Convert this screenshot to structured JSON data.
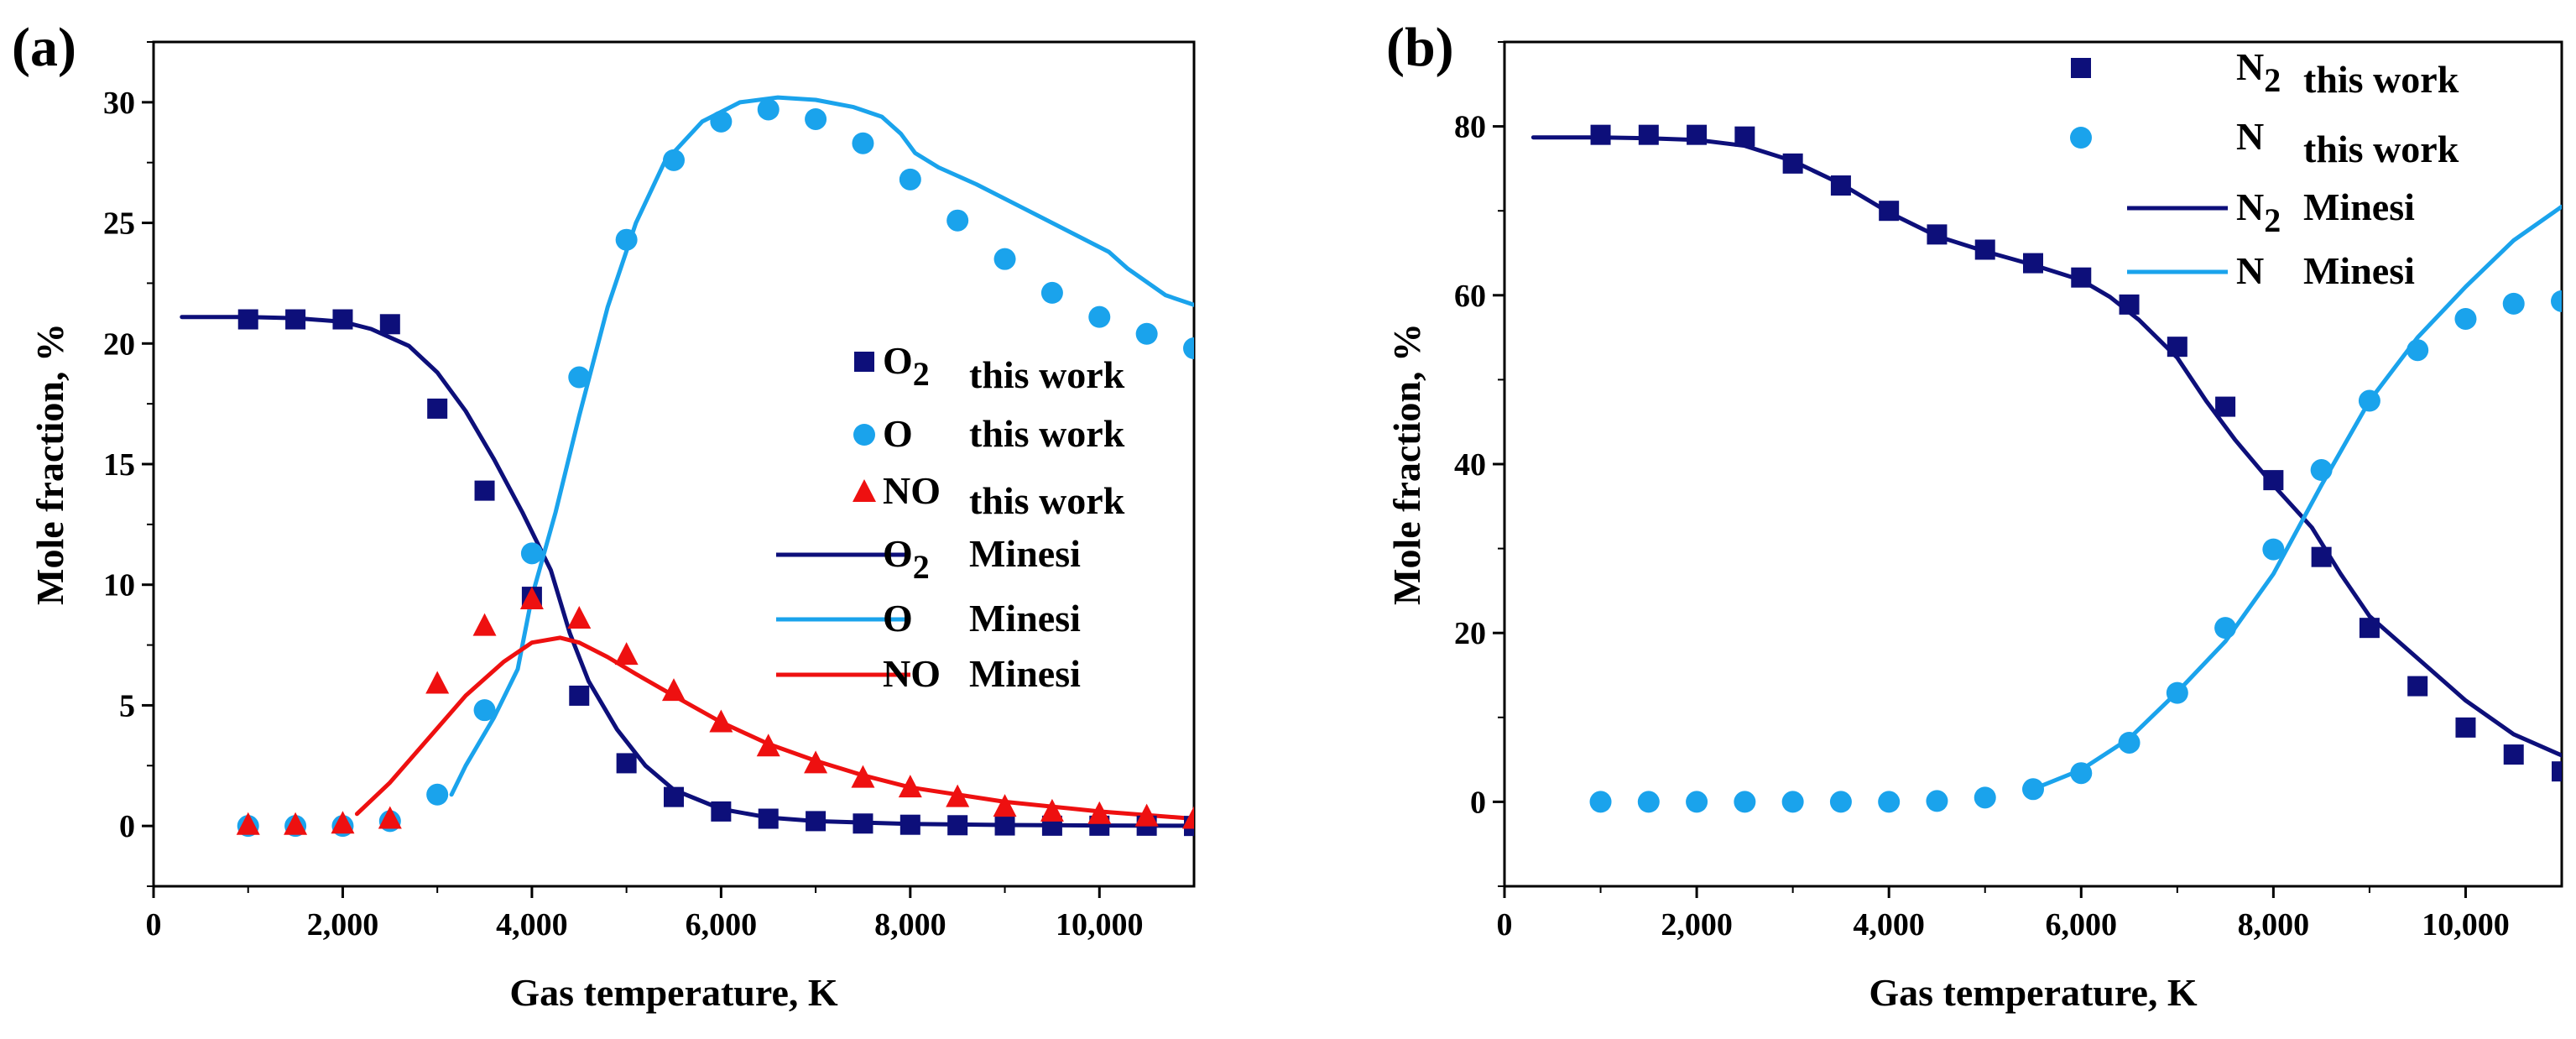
{
  "chart_data": [
    {
      "type": "scatter+line",
      "panel_label": "(a)",
      "xlabel": "Gas temperature, K",
      "ylabel": "Mole fraction, %",
      "xlim": [
        0,
        11000
      ],
      "ylim": [
        -2.5,
        32.5
      ],
      "xticks": [
        0,
        2000,
        4000,
        6000,
        8000,
        10000
      ],
      "xtick_labels": [
        "0",
        "2,000",
        "4,000",
        "6,000",
        "8,000",
        "10,000"
      ],
      "yticks": [
        0,
        5,
        10,
        15,
        20,
        25,
        30
      ],
      "ytick_labels": [
        "0",
        "5",
        "10",
        "15",
        "20",
        "25",
        "30"
      ],
      "legend_position": "center-right",
      "series": [
        {
          "name": "O2 this work",
          "species": "O",
          "sub": "2",
          "source": "this work",
          "kind": "markers",
          "marker": "square",
          "color": "#0d0f7a",
          "x": [
            1000,
            1500,
            2000,
            2500,
            3000,
            3500,
            4000,
            4500,
            5000,
            5500,
            6000,
            6500,
            7000,
            7500,
            8000,
            8500,
            9000,
            9500,
            10000,
            10500,
            11000
          ],
          "y": [
            21.0,
            21.0,
            21.0,
            20.8,
            17.3,
            13.9,
            9.5,
            5.4,
            2.6,
            1.2,
            0.6,
            0.3,
            0.2,
            0.1,
            0.05,
            0.03,
            0.02,
            0.01,
            0.01,
            0.01,
            0.0
          ]
        },
        {
          "name": "O this work",
          "species": "O",
          "sub": "",
          "source": "this work",
          "kind": "markers",
          "marker": "circle",
          "color": "#1aa3ec",
          "x": [
            1000,
            1500,
            2000,
            2500,
            3000,
            3500,
            4000,
            4500,
            5000,
            5500,
            6000,
            6500,
            7000,
            7500,
            8000,
            8500,
            9000,
            9500,
            10000,
            10500,
            11000
          ],
          "y": [
            0,
            0,
            0,
            0.2,
            1.3,
            4.8,
            11.3,
            18.6,
            24.3,
            27.6,
            29.2,
            29.7,
            29.3,
            28.3,
            26.8,
            25.1,
            23.5,
            22.1,
            21.1,
            20.4,
            19.8
          ]
        },
        {
          "name": "NO this work",
          "species": "NO",
          "sub": "",
          "source": "this work",
          "kind": "markers",
          "marker": "triangle",
          "color": "#ee1010",
          "x": [
            1000,
            1500,
            2000,
            2500,
            3000,
            3500,
            4000,
            4500,
            5000,
            5500,
            6000,
            6500,
            7000,
            7500,
            8000,
            8500,
            9000,
            9500,
            10000,
            10500,
            11000
          ],
          "y": [
            0.05,
            0.05,
            0.1,
            0.3,
            5.9,
            8.3,
            9.4,
            8.6,
            7.1,
            5.6,
            4.3,
            3.3,
            2.6,
            2.0,
            1.6,
            1.2,
            0.8,
            0.6,
            0.5,
            0.4,
            0.3
          ]
        },
        {
          "name": "O2 Minesi",
          "species": "O",
          "sub": "2",
          "source": "Minesi",
          "kind": "line",
          "color": "#0d0f7a",
          "x": [
            300,
            1000,
            1500,
            2000,
            2300,
            2700,
            3000,
            3300,
            3600,
            3900,
            4200,
            4400,
            4600,
            4900,
            5200,
            5500,
            6000,
            6500,
            7000,
            8000,
            9000,
            10000,
            11000
          ],
          "y": [
            21.1,
            21.1,
            21.05,
            20.9,
            20.6,
            19.9,
            18.8,
            17.2,
            15.2,
            13.0,
            10.6,
            8.0,
            6.0,
            4.0,
            2.5,
            1.5,
            0.7,
            0.35,
            0.2,
            0.08,
            0.04,
            0.02,
            0.01
          ]
        },
        {
          "name": "O Minesi",
          "species": "O",
          "sub": "",
          "source": "Minesi",
          "kind": "line",
          "color": "#1aa3ec",
          "x": [
            3150,
            3300,
            3600,
            3850,
            4000,
            4250,
            4500,
            4800,
            5100,
            5400,
            5800,
            6200,
            6600,
            7000,
            7400,
            7700,
            7900,
            8050,
            8300,
            8700,
            9200,
            9700,
            10100,
            10300,
            10700,
            11000
          ],
          "y": [
            1.3,
            2.5,
            4.5,
            6.5,
            9.5,
            13.0,
            17.0,
            21.5,
            25.0,
            27.5,
            29.2,
            30.0,
            30.2,
            30.1,
            29.8,
            29.4,
            28.7,
            27.9,
            27.3,
            26.6,
            25.6,
            24.6,
            23.8,
            23.1,
            22.0,
            21.6
          ]
        },
        {
          "name": "NO Minesi",
          "species": "NO",
          "sub": "",
          "source": "Minesi",
          "kind": "line",
          "color": "#ee1010",
          "x": [
            2150,
            2500,
            2900,
            3300,
            3700,
            4000,
            4300,
            4500,
            4800,
            5100,
            5500,
            6000,
            6500,
            7000,
            7500,
            8000,
            9000,
            10000,
            11000
          ],
          "y": [
            0.5,
            1.8,
            3.6,
            5.4,
            6.8,
            7.6,
            7.8,
            7.6,
            7.0,
            6.3,
            5.4,
            4.3,
            3.4,
            2.7,
            2.1,
            1.6,
            1.0,
            0.6,
            0.3
          ]
        }
      ]
    },
    {
      "type": "scatter+line",
      "panel_label": "(b)",
      "xlabel": "Gas temperature, K",
      "ylabel": "Mole fraction, %",
      "xlim": [
        0,
        11000
      ],
      "ylim": [
        -10,
        90
      ],
      "xticks": [
        0,
        2000,
        4000,
        6000,
        8000,
        10000
      ],
      "xtick_labels": [
        "0",
        "2,000",
        "4,000",
        "6,000",
        "8,000",
        "10,000"
      ],
      "yticks": [
        0,
        20,
        40,
        60,
        80
      ],
      "ytick_labels": [
        "0",
        "20",
        "40",
        "60",
        "80"
      ],
      "legend_position": "top-right",
      "series": [
        {
          "name": "N2 this work",
          "species": "N",
          "sub": "2",
          "source": "this work",
          "kind": "markers",
          "marker": "square",
          "color": "#0d0f7a",
          "x": [
            1000,
            1500,
            2000,
            2500,
            3000,
            3500,
            4000,
            4500,
            5000,
            5500,
            6000,
            6500,
            7000,
            7500,
            8000,
            8500,
            9000,
            9500,
            10000,
            10500,
            11000
          ],
          "y": [
            79.0,
            79.0,
            79.0,
            78.8,
            75.6,
            73.0,
            70.0,
            67.2,
            65.4,
            63.8,
            62.1,
            58.9,
            53.9,
            46.8,
            38.1,
            29.0,
            20.6,
            13.7,
            8.8,
            5.6,
            3.6
          ]
        },
        {
          "name": "N this work",
          "species": "N",
          "sub": "",
          "source": "this work",
          "kind": "markers",
          "marker": "circle",
          "color": "#1aa3ec",
          "x": [
            1000,
            1500,
            2000,
            2500,
            3000,
            3500,
            4000,
            4500,
            5000,
            5500,
            6000,
            6500,
            7000,
            7500,
            8000,
            8500,
            9000,
            9500,
            10000,
            10500,
            11000
          ],
          "y": [
            0,
            0,
            0,
            0,
            0,
            0,
            0,
            0.1,
            0.5,
            1.5,
            3.4,
            7.0,
            12.9,
            20.6,
            29.9,
            39.3,
            47.5,
            53.5,
            57.2,
            59.0,
            59.3
          ]
        },
        {
          "name": "N2 Minesi",
          "species": "N",
          "sub": "2",
          "source": "Minesi",
          "kind": "line",
          "color": "#0d0f7a",
          "x": [
            300,
            1000,
            1500,
            2000,
            2500,
            3000,
            3500,
            4000,
            4500,
            5000,
            5500,
            6000,
            6300,
            6600,
            7000,
            7300,
            7600,
            8000,
            8400,
            8700,
            9000,
            9500,
            10000,
            10500,
            11000
          ],
          "y": [
            78.7,
            78.7,
            78.6,
            78.4,
            77.7,
            75.9,
            73.2,
            69.8,
            67.0,
            65.2,
            63.6,
            61.8,
            59.8,
            57.1,
            52.6,
            47.5,
            42.9,
            37.5,
            32.5,
            27.0,
            22.0,
            17.0,
            12.0,
            8.0,
            5.5
          ]
        },
        {
          "name": "N Minesi",
          "species": "N",
          "sub": "",
          "source": "Minesi",
          "kind": "line",
          "color": "#1aa3ec",
          "x": [
            5500,
            6000,
            6500,
            7000,
            7500,
            8000,
            8500,
            9000,
            9500,
            10000,
            10500,
            11000
          ],
          "y": [
            1.5,
            3.8,
            7.5,
            13.0,
            19.0,
            27.0,
            37.5,
            47.5,
            55.0,
            61.0,
            66.5,
            70.5
          ]
        }
      ]
    }
  ]
}
